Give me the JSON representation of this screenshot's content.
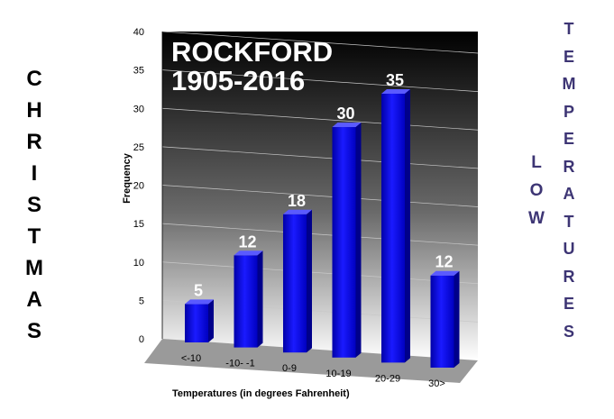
{
  "left_text": {
    "letters": [
      "C",
      "H",
      "R",
      "I",
      "S",
      "T",
      "M",
      "A",
      "S"
    ]
  },
  "mid_text": {
    "letters": [
      "L",
      "O",
      "W"
    ]
  },
  "right_text": {
    "letters": [
      "T",
      "E",
      "M",
      "P",
      "E",
      "R",
      "A",
      "T",
      "U",
      "R",
      "E",
      "S"
    ]
  },
  "chart_data": {
    "type": "bar",
    "title_lines": [
      "ROCKFORD",
      "1905-2016"
    ],
    "categories": [
      "<-10",
      "-10- -1",
      "0-9",
      "10-19",
      "20-29",
      "30>"
    ],
    "values": [
      5,
      12,
      18,
      30,
      35,
      12
    ],
    "data_labels": [
      "5",
      "12",
      "18",
      "30",
      "35",
      "12"
    ],
    "ylabel": "Frequency",
    "xlabel": "Temperatures (in degrees Fahrenheit)",
    "ylim": [
      0,
      40
    ],
    "yticks": [
      "0",
      "5",
      "10",
      "15",
      "20",
      "25",
      "30",
      "35",
      "40"
    ],
    "grid": true,
    "colors": {
      "bar": "#1010e0",
      "bar_side": "#00008a",
      "bar_top": "#5a5aff",
      "wall_top": "#000000",
      "wall_bottom": "#ffffff",
      "floor": "#9a9a9a",
      "grid": "#c8c8c8"
    }
  }
}
